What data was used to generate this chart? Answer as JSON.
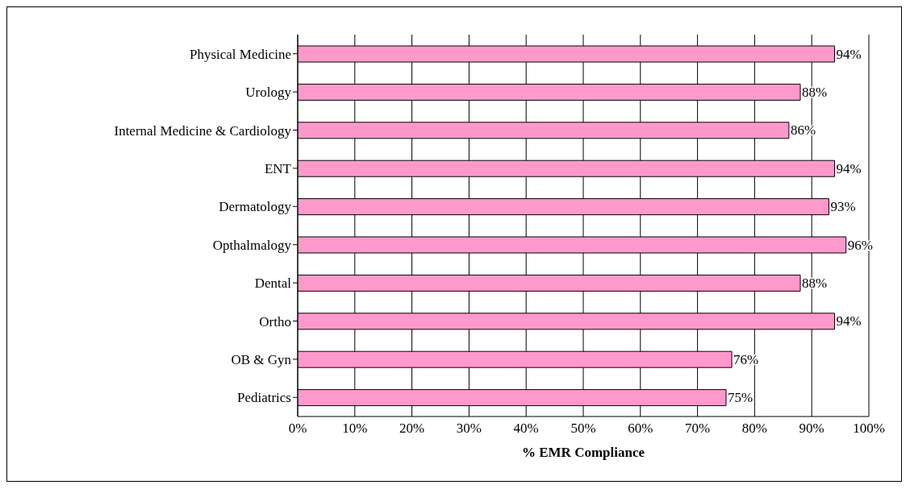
{
  "chart_data": {
    "type": "bar",
    "orientation": "horizontal",
    "xlabel": "% EMR Compliance",
    "categories": [
      "Physical Medicine",
      "Urology",
      "Internal Medicine & Cardiology",
      "ENT",
      "Dermatology",
      "Opthalmalogy",
      "Dental",
      "Ortho",
      "OB & Gyn",
      "Pediatrics"
    ],
    "values": [
      94,
      88,
      86,
      94,
      93,
      96,
      88,
      94,
      76,
      75
    ],
    "value_labels": [
      "94%",
      "88%",
      "86%",
      "94%",
      "93%",
      "96%",
      "88%",
      "94%",
      "76%",
      "75%"
    ],
    "color": "#ff99cc",
    "xlim": [
      0,
      100
    ],
    "xticks": [
      {
        "value": 0,
        "label": "0%"
      },
      {
        "value": 10,
        "label": "10%"
      },
      {
        "value": 20,
        "label": "20%"
      },
      {
        "value": 30,
        "label": "30%"
      },
      {
        "value": 40,
        "label": "40%"
      },
      {
        "value": 50,
        "label": "50%"
      },
      {
        "value": 60,
        "label": "60%"
      },
      {
        "value": 70,
        "label": "70%"
      },
      {
        "value": 80,
        "label": "80%"
      },
      {
        "value": 90,
        "label": "90%"
      },
      {
        "value": 100,
        "label": "100%"
      }
    ],
    "grid": "x"
  }
}
